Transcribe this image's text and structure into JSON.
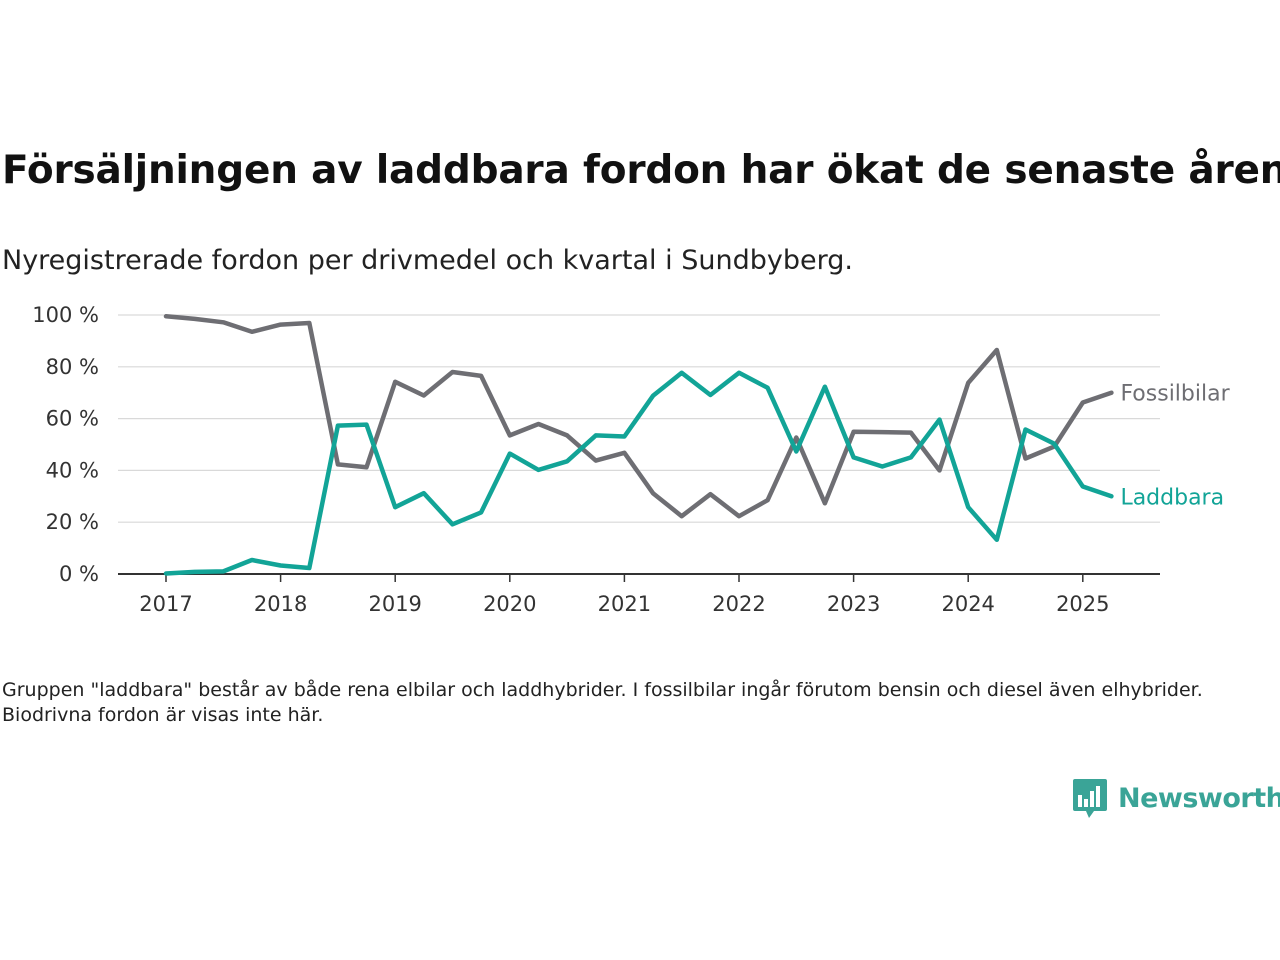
{
  "title": "Försäljningen av laddbara fordon har ökat de senaste åren",
  "subtitle": "Nyregistrerade fordon per drivmedel och kvartal i Sundbyberg.",
  "footnote": "Gruppen \"laddbara\" består av både rena elbilar och laddhybrider. I fossilbilar ingår förutom bensin och diesel även elhybrider. Biodrivna fordon är visas inte här.",
  "brand": {
    "name": "Newsworthy",
    "color": "#3aa497",
    "icon": "bar-chart-speech-bubble-icon"
  },
  "chart_data": {
    "type": "line",
    "x_quarters": [
      "2017Q1",
      "2017Q2",
      "2017Q3",
      "2017Q4",
      "2018Q1",
      "2018Q2",
      "2018Q3",
      "2018Q4",
      "2019Q1",
      "2019Q2",
      "2019Q3",
      "2019Q4",
      "2020Q1",
      "2020Q2",
      "2020Q3",
      "2020Q4",
      "2021Q1",
      "2021Q2",
      "2021Q3",
      "2021Q4",
      "2022Q1",
      "2022Q2",
      "2022Q3",
      "2022Q4",
      "2023Q1",
      "2023Q2",
      "2023Q3",
      "2023Q4",
      "2024Q1",
      "2024Q2",
      "2024Q3",
      "2024Q4",
      "2025Q1",
      "2025Q2"
    ],
    "x_ticks": [
      "2017",
      "2018",
      "2019",
      "2020",
      "2021",
      "2022",
      "2023",
      "2024",
      "2025"
    ],
    "y_ticks": [
      "0 %",
      "20 %",
      "40 %",
      "60 %",
      "80 %",
      "100 %"
    ],
    "ylim": [
      0,
      100
    ],
    "grid": true,
    "series": [
      {
        "name": "Fossilbilar",
        "color": "#6e6e73",
        "values": [
          99.5,
          98.5,
          97.2,
          93.5,
          96.3,
          96.9,
          42.3,
          41.2,
          74.2,
          68.9,
          78,
          76.5,
          53.5,
          57.9,
          53.5,
          43.8,
          46.8,
          31.2,
          22.3,
          30.8,
          22.3,
          28.5,
          52.7,
          27.3,
          54.9,
          54.8,
          54.6,
          40,
          73.8,
          86.5,
          44.6,
          49.2,
          66.2,
          70
        ]
      },
      {
        "name": "Laddbara",
        "color": "#12a497",
        "values": [
          0.2,
          0.8,
          1,
          5.4,
          3.3,
          2.3,
          57.3,
          57.7,
          25.8,
          31.2,
          19.2,
          23.8,
          46.5,
          40.2,
          43.5,
          53.5,
          53.1,
          68.8,
          77.7,
          69.1,
          77.7,
          71.9,
          47.3,
          72.3,
          45,
          41.5,
          45,
          59.6,
          25.8,
          13.2,
          55.8,
          50.3,
          33.8,
          30
        ]
      }
    ]
  }
}
